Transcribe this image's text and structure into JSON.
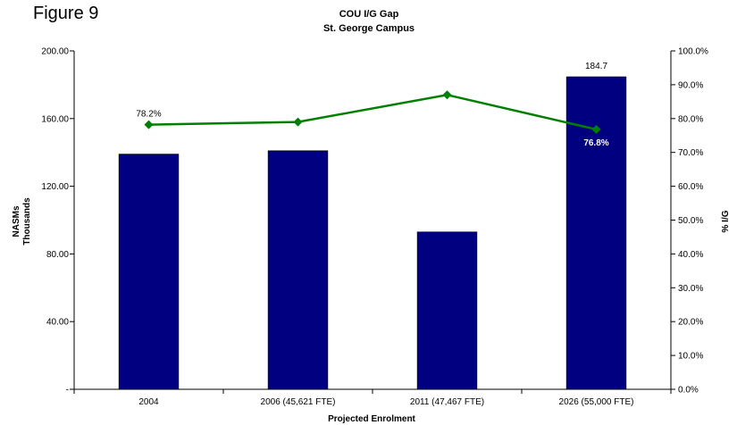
{
  "figure_label": "Figure 9",
  "chart_data": {
    "type": "bar",
    "title": "COU I/G Gap",
    "subtitle": "St. George Campus",
    "xlabel": "Projected Enrolment",
    "ylabel": [
      "NASMs",
      "Thousands"
    ],
    "y2label": "% I/G",
    "categories": [
      "2004",
      "2006 (45,621 FTE)",
      "2011 (47,467 FTE)",
      "2026 (55,000 FTE)"
    ],
    "ylim": [
      0,
      200
    ],
    "y_ticks": [
      0,
      40,
      80,
      120,
      160,
      200
    ],
    "y_tick_labels": [
      "-",
      "40.00",
      "80.00",
      "120.00",
      "160.00",
      "200.00"
    ],
    "y2lim": [
      0,
      100
    ],
    "y2_ticks": [
      0,
      10,
      20,
      30,
      40,
      50,
      60,
      70,
      80,
      90,
      100
    ],
    "y2_tick_labels": [
      "0.0%",
      "10.0%",
      "20.0%",
      "30.0%",
      "40.0%",
      "50.0%",
      "60.0%",
      "70.0%",
      "80.0%",
      "90.0%",
      "100.0%"
    ],
    "grid": false,
    "series": [
      {
        "kind": "bar",
        "axis": "left",
        "color": "#000080",
        "values": [
          139.0,
          141.0,
          93.0,
          184.7
        ]
      },
      {
        "kind": "line",
        "axis": "right",
        "color": "#008000",
        "values": [
          78.2,
          79.0,
          87.0,
          76.8
        ]
      }
    ],
    "data_labels": [
      {
        "series": 0,
        "index": 3,
        "text": "184.7",
        "placement": "above",
        "color": "#000000",
        "bold": false
      },
      {
        "series": 1,
        "index": 0,
        "text": "78.2%",
        "placement": "above",
        "color": "#000000",
        "bold": false
      },
      {
        "series": 1,
        "index": 3,
        "text": "76.8%",
        "placement": "below",
        "color": "#ffffff",
        "bold": true
      }
    ]
  }
}
